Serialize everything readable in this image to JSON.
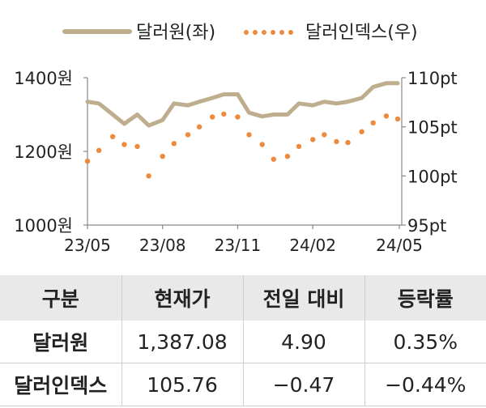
{
  "chart_data": {
    "type": "line",
    "legend": {
      "placement": "top",
      "items": [
        {
          "name": "달러원(좌)",
          "color": "#bfae8e",
          "style": "solid"
        },
        {
          "name": "달러인덱스(우)",
          "color": "#ee8a3c",
          "style": "dotted"
        }
      ]
    },
    "x_tick_labels": [
      "23/05",
      "23/08",
      "23/11",
      "24/02",
      "24/05"
    ],
    "y_left": {
      "ticks": [
        "1400원",
        "1200원",
        "1000원"
      ],
      "range": [
        1000,
        1400
      ]
    },
    "y_right": {
      "ticks": [
        "110pt",
        "105pt",
        "100pt",
        "95pt"
      ],
      "range": [
        95,
        110
      ]
    },
    "grid": false,
    "series": [
      {
        "name": "달러원(좌)",
        "axis": "left",
        "x": [
          "2023-05-01",
          "2023-05-15",
          "2023-06-01",
          "2023-06-15",
          "2023-07-01",
          "2023-07-15",
          "2023-08-01",
          "2023-08-15",
          "2023-09-01",
          "2023-09-15",
          "2023-10-01",
          "2023-10-15",
          "2023-11-01",
          "2023-11-15",
          "2023-12-01",
          "2023-12-15",
          "2024-01-01",
          "2024-01-15",
          "2024-02-01",
          "2024-02-15",
          "2024-03-01",
          "2024-03-15",
          "2024-04-01",
          "2024-04-15",
          "2024-05-01",
          "2024-05-15"
        ],
        "values": [
          1335,
          1330,
          1300,
          1275,
          1300,
          1270,
          1285,
          1330,
          1325,
          1335,
          1345,
          1355,
          1355,
          1305,
          1295,
          1300,
          1300,
          1330,
          1325,
          1335,
          1330,
          1335,
          1345,
          1375,
          1385,
          1385
        ]
      },
      {
        "name": "달러인덱스(우)",
        "axis": "right",
        "x": [
          "2023-05-01",
          "2023-05-15",
          "2023-06-01",
          "2023-06-15",
          "2023-07-01",
          "2023-07-15",
          "2023-08-01",
          "2023-08-15",
          "2023-09-01",
          "2023-09-15",
          "2023-10-01",
          "2023-10-15",
          "2023-11-01",
          "2023-11-15",
          "2023-12-01",
          "2023-12-15",
          "2024-01-01",
          "2024-01-15",
          "2024-02-01",
          "2024-02-15",
          "2024-03-01",
          "2024-03-15",
          "2024-04-01",
          "2024-04-15",
          "2024-05-01",
          "2024-05-15"
        ],
        "values": [
          101.5,
          102.6,
          104.0,
          103.2,
          103.0,
          100.0,
          102.0,
          103.3,
          104.2,
          105.0,
          106.0,
          106.3,
          106.0,
          104.2,
          103.2,
          101.7,
          102.0,
          103.0,
          103.7,
          104.2,
          103.5,
          103.4,
          104.5,
          105.4,
          106.1,
          105.8
        ]
      }
    ]
  },
  "table": {
    "headers": [
      "구분",
      "현재가",
      "전일 대비",
      "등락률"
    ],
    "rows": [
      [
        "달러원",
        "1,387.08",
        "4.90",
        "0.35%"
      ],
      [
        "달러인덱스",
        "105.76",
        "−0.47",
        "−0.44%"
      ]
    ]
  }
}
